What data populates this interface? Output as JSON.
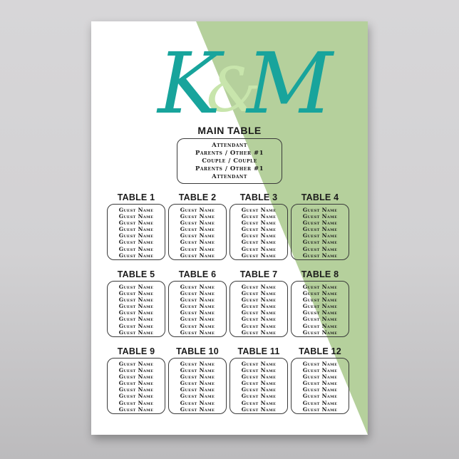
{
  "poster": {
    "monogram": {
      "left_initial": "K",
      "ampersand": "&",
      "right_initial": "M"
    },
    "main_table": {
      "title": "MAIN TABLE",
      "entries": [
        "Attendant",
        "Parents / Other #1",
        "Couple / Couple",
        "Parents / Other #1",
        "Attendant"
      ]
    },
    "tables": [
      {
        "label": "TABLE 1",
        "guests": [
          "Guest Name",
          "Guest Name",
          "Guest Name",
          "Guest Name",
          "Guest Name",
          "Guest Name",
          "Guest Name",
          "Guest Name"
        ]
      },
      {
        "label": "TABLE 2",
        "guests": [
          "Guest Name",
          "Guest Name",
          "Guest Name",
          "Guest Name",
          "Guest Name",
          "Guest Name",
          "Guest Name",
          "Guest Name"
        ]
      },
      {
        "label": "TABLE 3",
        "guests": [
          "Guest Name",
          "Guest Name",
          "Guest Name",
          "Guest Name",
          "Guest Name",
          "Guest Name",
          "Guest Name",
          "Guest Name"
        ]
      },
      {
        "label": "TABLE 4",
        "guests": [
          "Guest Name",
          "Guest Name",
          "Guest Name",
          "Guest Name",
          "Guest Name",
          "Guest Name",
          "Guest Name",
          "Guest Name"
        ]
      },
      {
        "label": "TABLE 5",
        "guests": [
          "Guest Name",
          "Guest Name",
          "Guest Name",
          "Guest Name",
          "Guest Name",
          "Guest Name",
          "Guest Name",
          "Guest Name"
        ]
      },
      {
        "label": "TABLE 6",
        "guests": [
          "Guest Name",
          "Guest Name",
          "Guest Name",
          "Guest Name",
          "Guest Name",
          "Guest Name",
          "Guest Name",
          "Guest Name"
        ]
      },
      {
        "label": "TABLE 7",
        "guests": [
          "Guest Name",
          "Guest Name",
          "Guest Name",
          "Guest Name",
          "Guest Name",
          "Guest Name",
          "Guest Name",
          "Guest Name"
        ]
      },
      {
        "label": "TABLE 8",
        "guests": [
          "Guest Name",
          "Guest Name",
          "Guest Name",
          "Guest Name",
          "Guest Name",
          "Guest Name",
          "Guest Name",
          "Guest Name"
        ]
      },
      {
        "label": "TABLE 9",
        "guests": [
          "Guest Name",
          "Guest Name",
          "Guest Name",
          "Guest Name",
          "Guest Name",
          "Guest Name",
          "Guest Name",
          "Guest Name"
        ]
      },
      {
        "label": "TABLE 10",
        "guests": [
          "Guest Name",
          "Guest Name",
          "Guest Name",
          "Guest Name",
          "Guest Name",
          "Guest Name",
          "Guest Name",
          "Guest Name"
        ]
      },
      {
        "label": "TABLE 11",
        "guests": [
          "Guest Name",
          "Guest Name",
          "Guest Name",
          "Guest Name",
          "Guest Name",
          "Guest Name",
          "Guest Name",
          "Guest Name"
        ]
      },
      {
        "label": "TABLE 12",
        "guests": [
          "Guest Name",
          "Guest Name",
          "Guest Name",
          "Guest Name",
          "Guest Name",
          "Guest Name",
          "Guest Name",
          "Guest Name"
        ]
      }
    ],
    "colors": {
      "teal": "#18a49c",
      "ampersand_green": "#c8e5ac",
      "panel_green": "#b5d09c",
      "backdrop_gray": "#d2d1d3",
      "ink": "#1b1b1b"
    }
  }
}
